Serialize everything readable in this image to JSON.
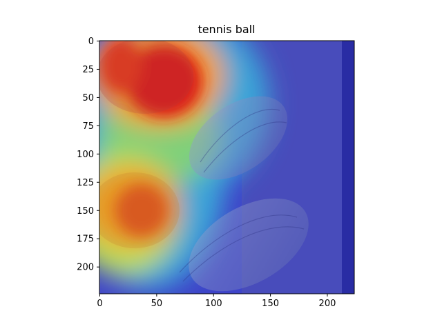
{
  "figure": {
    "title": "tennis ball"
  },
  "chart_data": {
    "type": "heatmap",
    "title": "tennis ball",
    "xlabel": "",
    "ylabel": "",
    "xlim": [
      0,
      224
    ],
    "ylim": [
      224,
      0
    ],
    "x_ticks": [
      0,
      50,
      100,
      150,
      200
    ],
    "y_ticks": [
      0,
      25,
      50,
      75,
      100,
      125,
      150,
      175,
      200
    ],
    "colormap": "jet",
    "overlay": "saliency heatmap over a photo of macarons",
    "hotspots": [
      {
        "x": 50,
        "y": 35,
        "level": 1.0
      },
      {
        "x": 18,
        "y": 25,
        "level": 0.85
      },
      {
        "x": 40,
        "y": 150,
        "level": 0.9
      },
      {
        "x": 15,
        "y": 120,
        "level": 0.55
      }
    ],
    "colors": {
      "hot": "#d81c1c",
      "warm": "#f4a020",
      "mid": "#7fd07a",
      "cool": "#3aa6d8",
      "cold": "#3e44c8"
    }
  }
}
